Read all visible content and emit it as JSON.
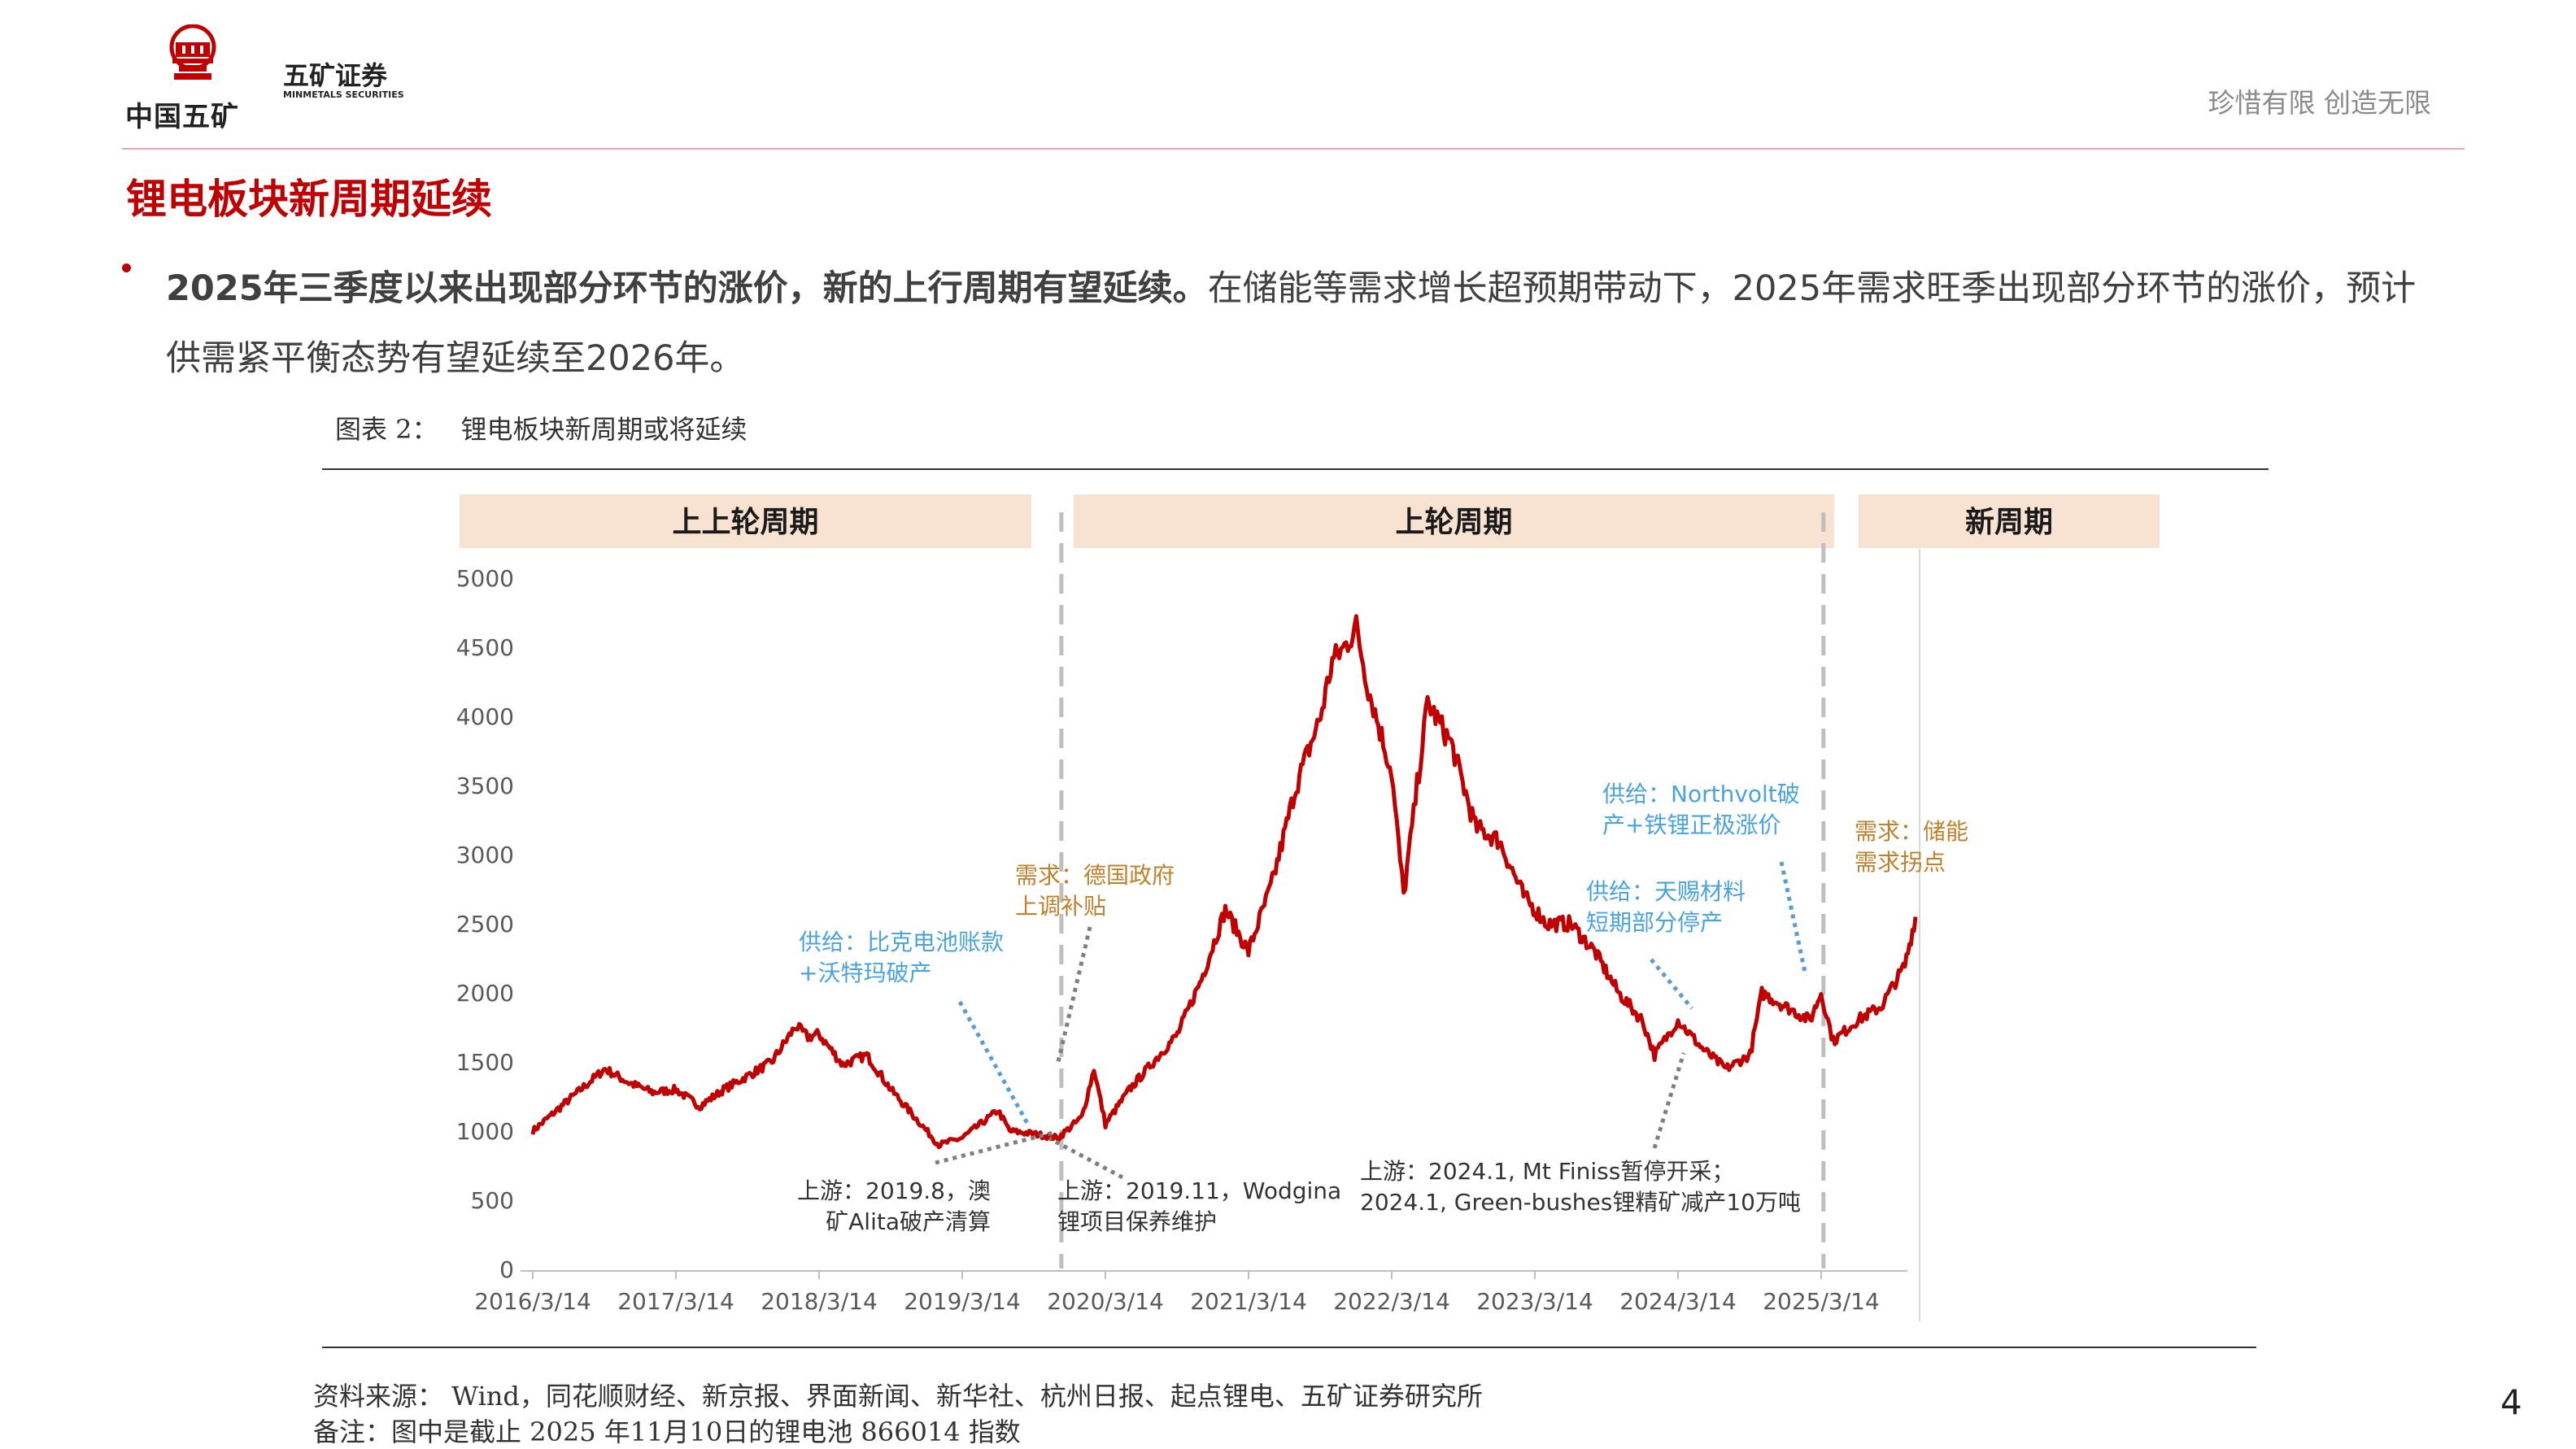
{
  "header": {
    "logo_cn": "中国五矿",
    "brand_cn": "五矿证券",
    "brand_en": "MINMETALS SECURITIES",
    "slogan": "珍惜有限  创造无限"
  },
  "section_title": "锂电板块新周期延续",
  "bullet": {
    "bold": "2025年三季度以来出现部分环节的涨价，新的上行周期有望延续。",
    "rest": "在储能等需求增长超预期带动下，2025年需求旺季出现部分环节的涨价，预计供需紧平衡态势有望延续至2026年。"
  },
  "figure": {
    "label": "图表 2：",
    "title": "锂电板块新周期或将延续"
  },
  "chart_data": {
    "type": "line",
    "series": [
      {
        "color": "#c00000",
        "points": [
          [
            "2016-03-14",
            1000
          ],
          [
            "2016-05-14",
            1150
          ],
          [
            "2016-07-14",
            1300
          ],
          [
            "2016-09-14",
            1450
          ],
          [
            "2016-11-14",
            1350
          ],
          [
            "2017-01-14",
            1280
          ],
          [
            "2017-03-14",
            1300
          ],
          [
            "2017-05-14",
            1180
          ],
          [
            "2017-07-14",
            1300
          ],
          [
            "2017-09-14",
            1400
          ],
          [
            "2017-11-14",
            1500
          ],
          [
            "2018-01-14",
            1760
          ],
          [
            "2018-02-14",
            1680
          ],
          [
            "2018-03-14",
            1700
          ],
          [
            "2018-05-14",
            1480
          ],
          [
            "2018-07-14",
            1550
          ],
          [
            "2018-09-14",
            1300
          ],
          [
            "2018-11-14",
            1100
          ],
          [
            "2019-01-14",
            900
          ],
          [
            "2019-03-14",
            950
          ],
          [
            "2019-05-14",
            1080
          ],
          [
            "2019-06-14",
            1150
          ],
          [
            "2019-07-14",
            1000
          ],
          [
            "2019-09-14",
            980
          ],
          [
            "2019-11-14",
            950
          ],
          [
            "2020-01-14",
            1100
          ],
          [
            "2020-02-14",
            1450
          ],
          [
            "2020-03-14",
            1050
          ],
          [
            "2020-05-14",
            1300
          ],
          [
            "2020-07-14",
            1500
          ],
          [
            "2020-09-14",
            1700
          ],
          [
            "2020-11-14",
            2100
          ],
          [
            "2021-01-14",
            2600
          ],
          [
            "2021-03-14",
            2300
          ],
          [
            "2021-05-14",
            2800
          ],
          [
            "2021-07-14",
            3500
          ],
          [
            "2021-09-14",
            4000
          ],
          [
            "2021-10-14",
            4400
          ],
          [
            "2021-11-14",
            4500
          ],
          [
            "2021-12-14",
            4650
          ],
          [
            "2022-01-14",
            4200
          ],
          [
            "2022-03-14",
            3600
          ],
          [
            "2022-04-14",
            2700
          ],
          [
            "2022-05-14",
            3400
          ],
          [
            "2022-06-14",
            4100
          ],
          [
            "2022-08-14",
            3800
          ],
          [
            "2022-10-14",
            3200
          ],
          [
            "2022-12-14",
            3100
          ],
          [
            "2023-02-14",
            2700
          ],
          [
            "2023-04-14",
            2500
          ],
          [
            "2023-06-14",
            2500
          ],
          [
            "2023-08-14",
            2300
          ],
          [
            "2023-10-14",
            2000
          ],
          [
            "2023-12-14",
            1800
          ],
          [
            "2024-01-14",
            1550
          ],
          [
            "2024-03-14",
            1800
          ],
          [
            "2024-05-14",
            1600
          ],
          [
            "2024-07-14",
            1450
          ],
          [
            "2024-09-14",
            1550
          ],
          [
            "2024-10-14",
            2000
          ],
          [
            "2024-12-14",
            1900
          ],
          [
            "2025-02-14",
            1800
          ],
          [
            "2025-03-14",
            2000
          ],
          [
            "2025-04-14",
            1650
          ],
          [
            "2025-06-14",
            1800
          ],
          [
            "2025-08-14",
            1900
          ],
          [
            "2025-10-14",
            2200
          ],
          [
            "2025-11-10",
            2550
          ]
        ]
      }
    ],
    "x_ticks": [
      "2016/3/14",
      "2017/3/14",
      "2018/3/14",
      "2019/3/14",
      "2020/3/14",
      "2021/3/14",
      "2022/3/14",
      "2023/3/14",
      "2024/3/14",
      "2025/3/14"
    ],
    "y_ticks": [
      "5000",
      "4500",
      "4000",
      "3500",
      "3000",
      "2500",
      "2000",
      "1500",
      "1000",
      "500",
      "0"
    ],
    "ylim": [
      0,
      5000
    ],
    "periods": [
      "上上轮周期",
      "上轮周期",
      "新周期"
    ],
    "period_dividers": [
      "2019-12-01",
      "2025-03-20"
    ],
    "annotations": [
      {
        "text": [
          "需求：德国政府",
          "上调补贴"
        ],
        "color": "#c0812d"
      },
      {
        "text": [
          "供给：比克电池账款",
          "+沃特玛破产"
        ],
        "color": "#4aa3df"
      },
      {
        "text": [
          "上游：2019.8，澳",
          "矿Alita破产清算"
        ],
        "color": "#333333"
      },
      {
        "text": [
          "上游：2019.11，Wodgina",
          "锂项目保养维护"
        ],
        "color": "#333333"
      },
      {
        "text": [
          "上游：2024.1, Mt Finiss暂停开采；",
          "2024.1, Green-bushes锂精矿减产10万吨"
        ],
        "color": "#333333"
      },
      {
        "text": [
          "供给：天赐材料",
          "短期部分停产"
        ],
        "color": "#4aa3df"
      },
      {
        "text": [
          "供给：Northvolt破",
          "产+铁锂正极涨价"
        ],
        "color": "#4aa3df"
      },
      {
        "text": [
          "需求：储能",
          "需求拐点"
        ],
        "color": "#c0812d"
      }
    ]
  },
  "footer": {
    "source": "资料来源：  Wind，同花顺财经、新京报、界面新闻、新华社、杭州日报、起点锂电、五矿证券研究所",
    "note": "备注：图中是截止 2025 年11月10日的锂电池 866014 指数",
    "page": "4"
  }
}
